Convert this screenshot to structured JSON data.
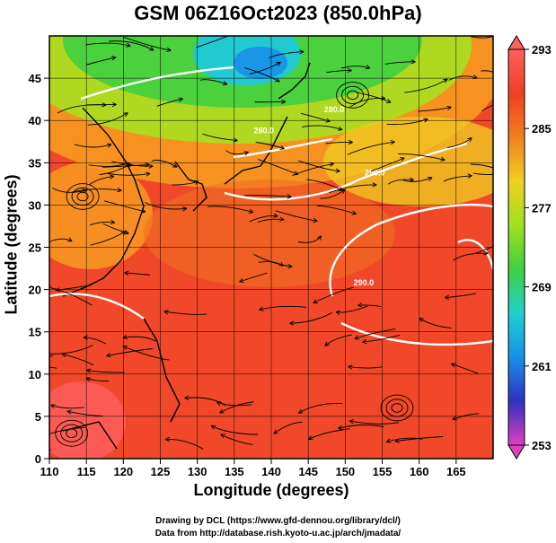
{
  "title": "GSM 06Z16Oct2023 (850.0hPa)",
  "xlabel": "Longitude (degrees)",
  "ylabel": "Latitude  (degrees)",
  "credit_line1": "Drawing by DCL (https://www.gfd-dennou.org/library/dcl/)",
  "credit_line2": "Data from http://database.rish.kyoto-u.ac.jp/arch/jmadata/",
  "chart_data": {
    "type": "heatmap",
    "xlim": [
      110,
      170
    ],
    "ylim": [
      0,
      50
    ],
    "x_ticks": [
      110,
      115,
      120,
      125,
      130,
      135,
      140,
      145,
      150,
      155,
      160,
      165
    ],
    "y_ticks": [
      0,
      5,
      10,
      15,
      20,
      25,
      30,
      35,
      40,
      45
    ],
    "grid": true,
    "overlays": [
      "temperature shading",
      "wind streamlines",
      "white contour lines",
      "coastlines"
    ],
    "colorbar": {
      "ticks": [
        253,
        261,
        269,
        277,
        285,
        293
      ],
      "min": 253,
      "max": 293,
      "colors": [
        "#e040c0",
        "#3030c0",
        "#1890e8",
        "#20d0d0",
        "#40d040",
        "#a0e020",
        "#f0d020",
        "#f08020",
        "#f04020",
        "#ff6060"
      ]
    },
    "contour_labels": [
      {
        "text": "290.0",
        "lon": 152.5,
        "lat": 20.5
      },
      {
        "text": "280.0",
        "lon": 148.5,
        "lat": 41.0
      },
      {
        "text": "280.0",
        "lon": 139.0,
        "lat": 38.5
      },
      {
        "text": "290.0",
        "lon": 154.0,
        "lat": 33.5
      }
    ]
  }
}
